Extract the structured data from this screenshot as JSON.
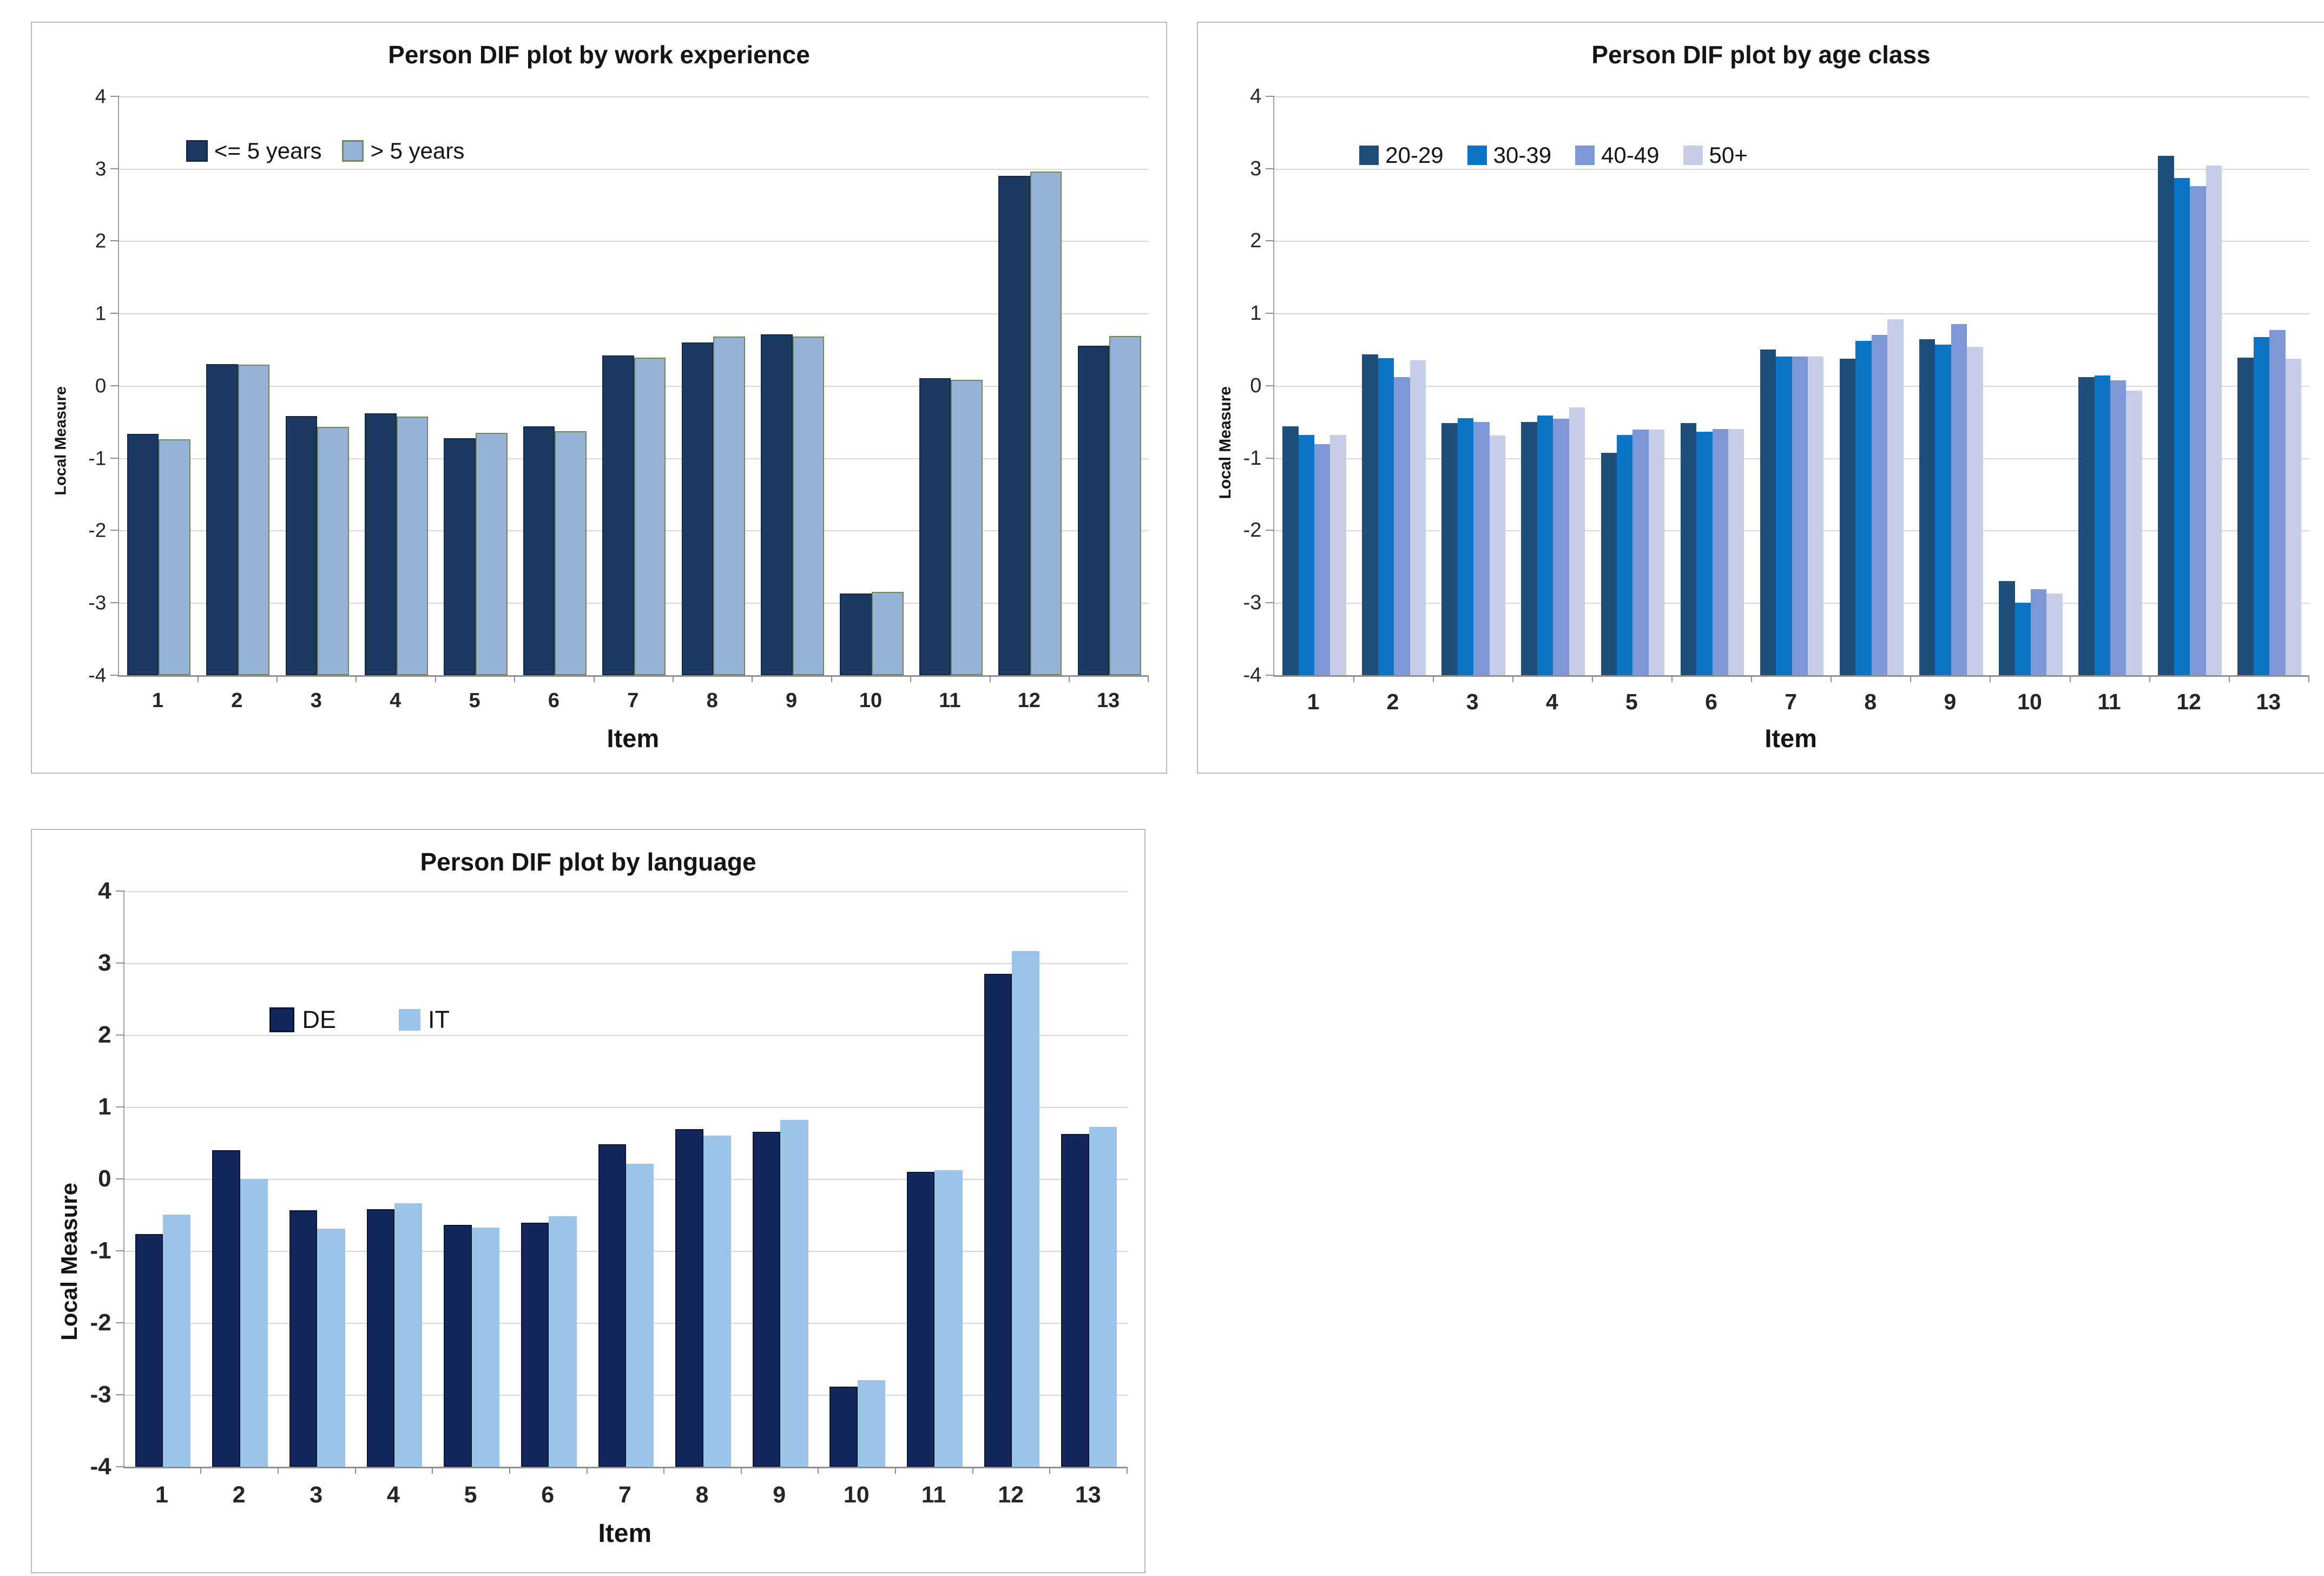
{
  "page_background": "#ffffff",
  "chart_data": [
    {
      "id": "work-experience",
      "type": "bar",
      "title": "Person DIF plot by work experience",
      "xlabel": "Item",
      "ylabel": "Local Measure",
      "ylim": [
        -4,
        4
      ],
      "yticks": [
        4,
        3,
        2,
        1,
        0,
        -1,
        -2,
        -3,
        -4
      ],
      "bar_base": -4,
      "grid": true,
      "legend_position": "inside-top-left",
      "categories": [
        "1",
        "2",
        "3",
        "4",
        "5",
        "6",
        "7",
        "8",
        "9",
        "10",
        "11",
        "12",
        "13"
      ],
      "series": [
        {
          "name": "<= 5 years",
          "color": "#1c3a61",
          "border": "#12294a",
          "values": [
            -0.67,
            0.3,
            -0.42,
            -0.38,
            -0.73,
            -0.56,
            0.42,
            0.6,
            0.71,
            -2.87,
            0.1,
            2.9,
            0.55
          ]
        },
        {
          "name": "> 5 years",
          "color": "#95b3d7",
          "border": "#75855a",
          "values": [
            -0.74,
            0.29,
            -0.57,
            -0.43,
            -0.65,
            -0.63,
            0.39,
            0.68,
            0.68,
            -2.85,
            0.08,
            2.96,
            0.69
          ]
        }
      ]
    },
    {
      "id": "age-class",
      "type": "bar",
      "title": "Person DIF plot by age class",
      "xlabel": "Item",
      "ylabel": "Local Measure",
      "ylim": [
        -4,
        4
      ],
      "yticks": [
        4,
        3,
        2,
        1,
        0,
        -1,
        -2,
        -3,
        -4
      ],
      "bar_base": -4,
      "grid": true,
      "legend_position": "inside-top-left",
      "categories": [
        "1",
        "2",
        "3",
        "4",
        "5",
        "6",
        "7",
        "8",
        "9",
        "10",
        "11",
        "12",
        "13"
      ],
      "series": [
        {
          "name": "20-29",
          "color": "#1f4e79",
          "border": "",
          "values": [
            -0.56,
            0.43,
            -0.52,
            -0.5,
            -0.93,
            -0.52,
            0.5,
            0.37,
            0.64,
            -2.7,
            0.12,
            3.18,
            0.39
          ]
        },
        {
          "name": "30-39",
          "color": "#0b74c4",
          "border": "",
          "values": [
            -0.68,
            0.38,
            -0.45,
            -0.41,
            -0.68,
            -0.64,
            0.4,
            0.62,
            0.57,
            -3.0,
            0.14,
            2.87,
            0.67
          ]
        },
        {
          "name": "40-49",
          "color": "#7c96d6",
          "border": "",
          "values": [
            -0.81,
            0.12,
            -0.5,
            -0.46,
            -0.61,
            -0.6,
            0.4,
            0.7,
            0.85,
            -2.81,
            0.07,
            2.76,
            0.77
          ]
        },
        {
          "name": "50+",
          "color": "#c5cde8",
          "border": "",
          "values": [
            -0.68,
            0.35,
            -0.69,
            -0.3,
            -0.61,
            -0.6,
            0.4,
            0.92,
            0.54,
            -2.87,
            -0.07,
            3.04,
            0.37
          ]
        }
      ]
    },
    {
      "id": "language",
      "type": "bar",
      "title": "Person DIF plot by language",
      "xlabel": "Item",
      "ylabel": "Local Measure",
      "ylim": [
        -4,
        4
      ],
      "yticks": [
        4,
        3,
        2,
        1,
        0,
        -1,
        -2,
        -3,
        -4
      ],
      "bar_base": -4,
      "grid": true,
      "legend_position": "inside-top-left",
      "categories": [
        "1",
        "2",
        "3",
        "4",
        "5",
        "6",
        "7",
        "8",
        "9",
        "10",
        "11",
        "12",
        "13"
      ],
      "series": [
        {
          "name": "DE",
          "color": "#14275c",
          "border": "#0a1530",
          "values": [
            -0.77,
            0.4,
            -0.44,
            -0.42,
            -0.64,
            -0.61,
            0.48,
            0.69,
            0.65,
            -2.89,
            0.1,
            2.85,
            0.62
          ]
        },
        {
          "name": "IT",
          "color": "#9cc4e8",
          "border": "",
          "values": [
            -0.5,
            0.0,
            -0.69,
            -0.34,
            -0.68,
            -0.52,
            0.21,
            0.6,
            0.82,
            -2.8,
            0.12,
            3.16,
            0.72
          ]
        }
      ]
    }
  ]
}
